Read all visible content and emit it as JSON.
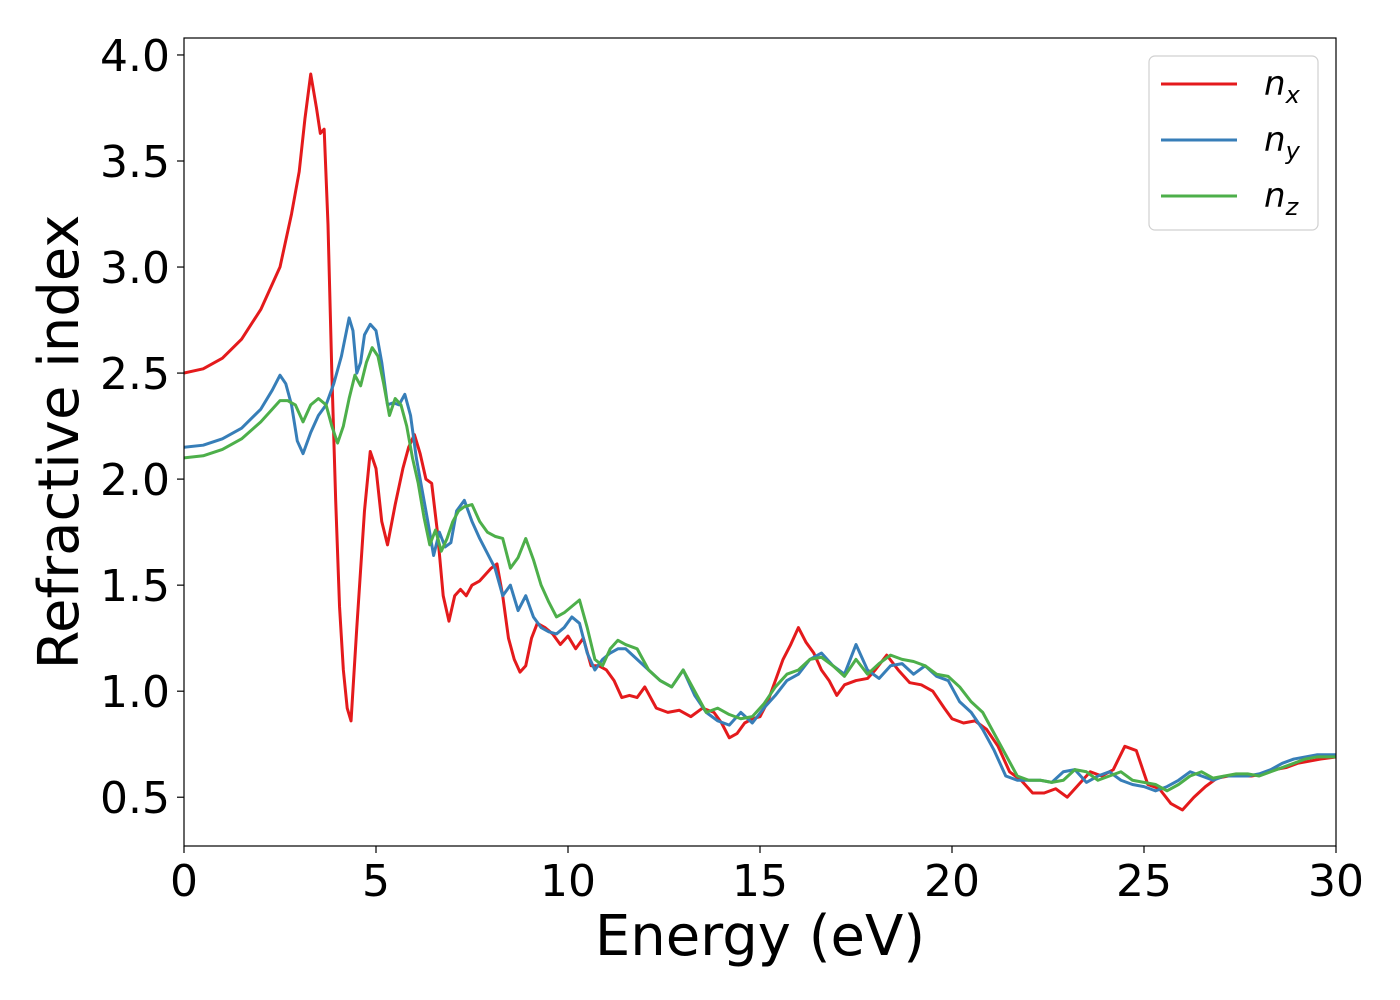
{
  "chart_data": {
    "type": "line",
    "title": "",
    "xlabel": "Energy (eV)",
    "ylabel": "Refractive index",
    "xlim": [
      0,
      30
    ],
    "ylim": [
      0.27,
      4.08
    ],
    "xticks": [
      0,
      5,
      10,
      15,
      20,
      25,
      30
    ],
    "xtick_labels": [
      "0",
      "5",
      "10",
      "15",
      "20",
      "25",
      "30"
    ],
    "yticks": [
      0.5,
      1.0,
      1.5,
      2.0,
      2.5,
      3.0,
      3.5,
      4.0
    ],
    "ytick_labels": [
      "0.5",
      "1.0",
      "1.5",
      "2.0",
      "2.5",
      "3.0",
      "3.5",
      "4.0"
    ],
    "grid": false,
    "legend_position": "top-right",
    "series": [
      {
        "name": "n_x",
        "label_base": "n",
        "label_sub": "x",
        "color": "#e41a1c",
        "x": [
          0,
          0.5,
          1.0,
          1.5,
          2.0,
          2.5,
          2.8,
          3.0,
          3.15,
          3.3,
          3.45,
          3.55,
          3.65,
          3.75,
          3.85,
          3.95,
          4.05,
          4.15,
          4.25,
          4.35,
          4.5,
          4.7,
          4.85,
          5.0,
          5.15,
          5.3,
          5.5,
          5.7,
          5.85,
          6.0,
          6.15,
          6.3,
          6.45,
          6.6,
          6.75,
          6.9,
          7.05,
          7.2,
          7.35,
          7.5,
          7.7,
          7.85,
          8.0,
          8.15,
          8.3,
          8.45,
          8.6,
          8.75,
          8.9,
          9.05,
          9.2,
          9.4,
          9.6,
          9.8,
          10.0,
          10.2,
          10.4,
          10.6,
          10.8,
          11.0,
          11.2,
          11.4,
          11.6,
          11.8,
          12.0,
          12.3,
          12.6,
          12.9,
          13.2,
          13.5,
          13.8,
          14.0,
          14.2,
          14.4,
          14.6,
          14.8,
          15.0,
          15.2,
          15.4,
          15.6,
          15.8,
          16.0,
          16.2,
          16.4,
          16.6,
          16.8,
          17.0,
          17.2,
          17.5,
          17.8,
          18.0,
          18.3,
          18.6,
          18.9,
          19.2,
          19.5,
          19.8,
          20.0,
          20.3,
          20.6,
          20.9,
          21.2,
          21.5,
          21.8,
          22.1,
          22.4,
          22.7,
          23.0,
          23.3,
          23.6,
          23.9,
          24.2,
          24.5,
          24.8,
          25.1,
          25.4,
          25.7,
          26.0,
          26.3,
          26.6,
          26.9,
          27.2,
          27.5,
          27.8,
          28.1,
          28.4,
          28.7,
          29.0,
          29.3,
          29.6,
          30.0
        ],
        "y": [
          2.5,
          2.52,
          2.57,
          2.66,
          2.8,
          3.0,
          3.25,
          3.45,
          3.7,
          3.91,
          3.75,
          3.63,
          3.65,
          3.2,
          2.5,
          1.9,
          1.4,
          1.1,
          0.92,
          0.86,
          1.3,
          1.85,
          2.13,
          2.05,
          1.8,
          1.69,
          1.88,
          2.05,
          2.15,
          2.21,
          2.12,
          2.0,
          1.98,
          1.75,
          1.45,
          1.33,
          1.45,
          1.48,
          1.45,
          1.5,
          1.52,
          1.55,
          1.58,
          1.6,
          1.45,
          1.25,
          1.15,
          1.09,
          1.12,
          1.25,
          1.32,
          1.3,
          1.27,
          1.22,
          1.26,
          1.2,
          1.25,
          1.12,
          1.12,
          1.1,
          1.05,
          0.97,
          0.98,
          0.97,
          1.02,
          0.92,
          0.9,
          0.91,
          0.88,
          0.92,
          0.9,
          0.85,
          0.78,
          0.8,
          0.85,
          0.87,
          0.88,
          0.95,
          1.05,
          1.15,
          1.22,
          1.3,
          1.23,
          1.18,
          1.1,
          1.05,
          0.98,
          1.03,
          1.05,
          1.06,
          1.1,
          1.17,
          1.1,
          1.04,
          1.03,
          1.0,
          0.92,
          0.87,
          0.85,
          0.86,
          0.82,
          0.74,
          0.62,
          0.58,
          0.52,
          0.52,
          0.54,
          0.5,
          0.56,
          0.62,
          0.6,
          0.63,
          0.74,
          0.72,
          0.56,
          0.54,
          0.47,
          0.44,
          0.5,
          0.55,
          0.59,
          0.6,
          0.6,
          0.6,
          0.61,
          0.63,
          0.64,
          0.66,
          0.67,
          0.68,
          0.69
        ],
        "stroke_width": 3
      },
      {
        "name": "n_y",
        "label_base": "n",
        "label_sub": "y",
        "color": "#377eb8",
        "x": [
          0,
          0.5,
          1.0,
          1.5,
          2.0,
          2.3,
          2.5,
          2.65,
          2.8,
          2.95,
          3.1,
          3.3,
          3.5,
          3.7,
          3.9,
          4.1,
          4.3,
          4.4,
          4.5,
          4.6,
          4.7,
          4.85,
          5.0,
          5.15,
          5.3,
          5.45,
          5.6,
          5.75,
          5.9,
          6.05,
          6.2,
          6.35,
          6.5,
          6.65,
          6.8,
          6.95,
          7.1,
          7.3,
          7.5,
          7.7,
          7.9,
          8.1,
          8.3,
          8.5,
          8.7,
          8.9,
          9.1,
          9.3,
          9.5,
          9.7,
          9.9,
          10.1,
          10.3,
          10.5,
          10.7,
          10.9,
          11.1,
          11.3,
          11.5,
          11.8,
          12.1,
          12.4,
          12.7,
          13.0,
          13.3,
          13.6,
          13.9,
          14.2,
          14.5,
          14.8,
          15.1,
          15.4,
          15.7,
          16.0,
          16.3,
          16.6,
          16.9,
          17.2,
          17.5,
          17.8,
          18.1,
          18.4,
          18.7,
          19.0,
          19.3,
          19.6,
          19.9,
          20.2,
          20.5,
          20.8,
          21.1,
          21.4,
          21.7,
          22.0,
          22.3,
          22.6,
          22.9,
          23.2,
          23.5,
          23.8,
          24.1,
          24.4,
          24.7,
          25.0,
          25.3,
          25.6,
          25.9,
          26.2,
          26.5,
          26.8,
          27.1,
          27.4,
          27.7,
          28.0,
          28.3,
          28.6,
          28.9,
          29.2,
          29.5,
          30.0
        ],
        "y": [
          2.15,
          2.16,
          2.19,
          2.24,
          2.33,
          2.42,
          2.49,
          2.45,
          2.35,
          2.18,
          2.12,
          2.22,
          2.3,
          2.35,
          2.45,
          2.58,
          2.76,
          2.7,
          2.5,
          2.55,
          2.68,
          2.73,
          2.7,
          2.55,
          2.35,
          2.36,
          2.35,
          2.4,
          2.3,
          2.1,
          1.95,
          1.8,
          1.64,
          1.75,
          1.68,
          1.7,
          1.85,
          1.9,
          1.8,
          1.72,
          1.65,
          1.58,
          1.45,
          1.5,
          1.38,
          1.45,
          1.35,
          1.3,
          1.28,
          1.27,
          1.3,
          1.35,
          1.32,
          1.18,
          1.1,
          1.15,
          1.18,
          1.2,
          1.2,
          1.15,
          1.1,
          1.05,
          1.02,
          1.1,
          0.98,
          0.9,
          0.86,
          0.84,
          0.9,
          0.85,
          0.92,
          0.98,
          1.05,
          1.08,
          1.15,
          1.18,
          1.12,
          1.08,
          1.22,
          1.1,
          1.06,
          1.12,
          1.13,
          1.08,
          1.12,
          1.07,
          1.05,
          0.95,
          0.9,
          0.82,
          0.72,
          0.6,
          0.58,
          0.58,
          0.58,
          0.57,
          0.62,
          0.63,
          0.57,
          0.6,
          0.62,
          0.58,
          0.56,
          0.55,
          0.53,
          0.55,
          0.58,
          0.62,
          0.6,
          0.58,
          0.6,
          0.6,
          0.6,
          0.61,
          0.63,
          0.66,
          0.68,
          0.69,
          0.7,
          0.7
        ]
      },
      {
        "name": "n_z",
        "label_base": "n",
        "label_sub": "z",
        "color": "#4daf4a",
        "x": [
          0,
          0.5,
          1.0,
          1.5,
          2.0,
          2.3,
          2.5,
          2.7,
          2.9,
          3.1,
          3.3,
          3.5,
          3.7,
          3.85,
          4.0,
          4.15,
          4.3,
          4.45,
          4.6,
          4.75,
          4.9,
          5.05,
          5.2,
          5.35,
          5.5,
          5.65,
          5.8,
          5.95,
          6.1,
          6.25,
          6.4,
          6.55,
          6.7,
          6.85,
          7.0,
          7.15,
          7.3,
          7.5,
          7.7,
          7.9,
          8.1,
          8.3,
          8.5,
          8.7,
          8.9,
          9.1,
          9.3,
          9.5,
          9.7,
          9.9,
          10.1,
          10.3,
          10.5,
          10.7,
          10.9,
          11.1,
          11.3,
          11.5,
          11.8,
          12.1,
          12.4,
          12.7,
          13.0,
          13.3,
          13.6,
          13.9,
          14.2,
          14.5,
          14.8,
          15.1,
          15.4,
          15.7,
          16.0,
          16.3,
          16.6,
          16.9,
          17.2,
          17.5,
          17.8,
          18.1,
          18.4,
          18.7,
          19.0,
          19.3,
          19.6,
          19.9,
          20.2,
          20.5,
          20.8,
          21.1,
          21.4,
          21.7,
          22.0,
          22.3,
          22.6,
          22.9,
          23.2,
          23.5,
          23.8,
          24.1,
          24.4,
          24.7,
          25.0,
          25.3,
          25.6,
          25.9,
          26.2,
          26.5,
          26.8,
          27.1,
          27.4,
          27.7,
          28.0,
          28.3,
          28.6,
          28.9,
          29.2,
          29.5,
          30.0
        ],
        "y": [
          2.1,
          2.11,
          2.14,
          2.19,
          2.27,
          2.33,
          2.37,
          2.37,
          2.35,
          2.27,
          2.35,
          2.38,
          2.35,
          2.25,
          2.17,
          2.25,
          2.38,
          2.49,
          2.44,
          2.55,
          2.62,
          2.58,
          2.45,
          2.3,
          2.38,
          2.35,
          2.25,
          2.1,
          1.98,
          1.82,
          1.69,
          1.76,
          1.66,
          1.72,
          1.8,
          1.85,
          1.87,
          1.88,
          1.8,
          1.75,
          1.73,
          1.72,
          1.58,
          1.63,
          1.72,
          1.62,
          1.5,
          1.42,
          1.35,
          1.37,
          1.4,
          1.43,
          1.3,
          1.15,
          1.12,
          1.2,
          1.24,
          1.22,
          1.2,
          1.1,
          1.05,
          1.02,
          1.1,
          1.0,
          0.9,
          0.92,
          0.89,
          0.87,
          0.88,
          0.94,
          1.02,
          1.08,
          1.1,
          1.15,
          1.16,
          1.12,
          1.07,
          1.15,
          1.08,
          1.13,
          1.17,
          1.15,
          1.14,
          1.12,
          1.08,
          1.07,
          1.02,
          0.95,
          0.9,
          0.8,
          0.7,
          0.6,
          0.58,
          0.58,
          0.57,
          0.58,
          0.63,
          0.62,
          0.58,
          0.6,
          0.62,
          0.58,
          0.57,
          0.56,
          0.53,
          0.56,
          0.6,
          0.62,
          0.59,
          0.6,
          0.61,
          0.61,
          0.6,
          0.62,
          0.64,
          0.66,
          0.68,
          0.69,
          0.69
        ]
      }
    ]
  }
}
